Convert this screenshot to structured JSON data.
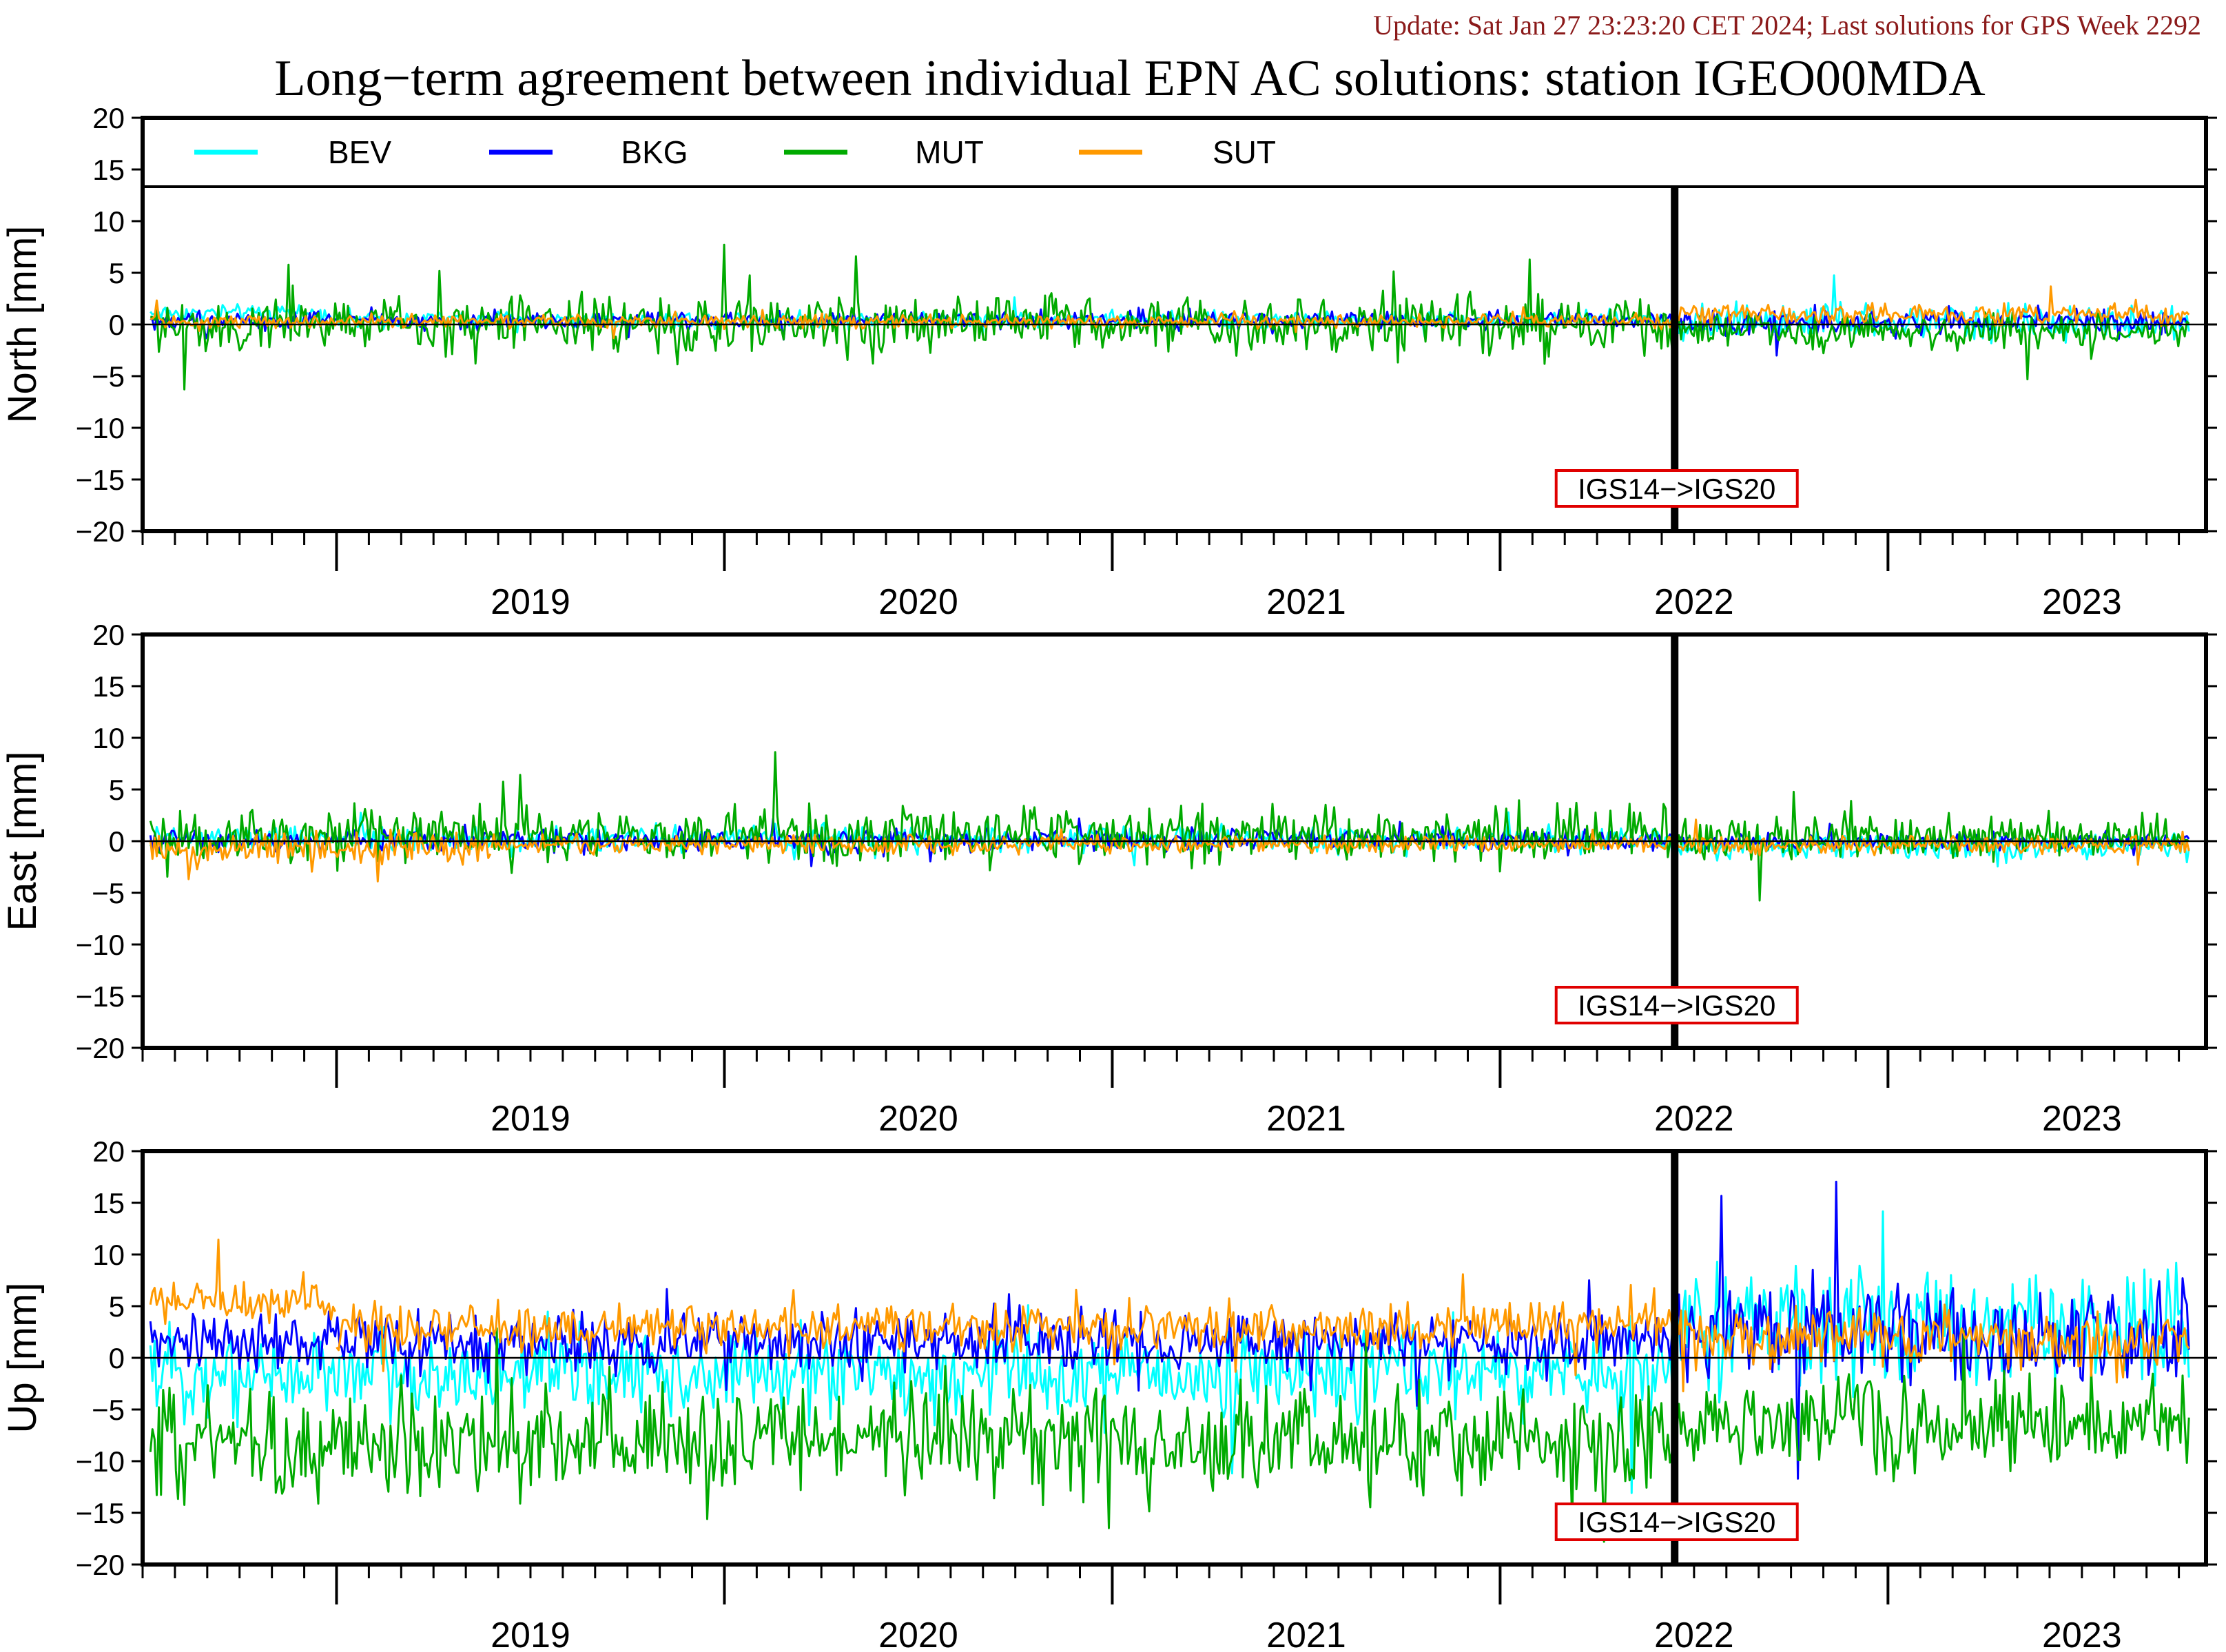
{
  "header": {
    "update_line": "Update: Sat Jan 27 23:23:20 CET 2024; Last solutions for GPS Week 2292",
    "title": "Long−term agreement between individual EPN AC solutions: station IGEO00MDA"
  },
  "colors": {
    "BEV": "#00ffff",
    "BKG": "#0000ff",
    "MUT": "#00aa00",
    "SUT": "#ff9900",
    "update_text": "#8b1a1a",
    "marker_box": "#e00000"
  },
  "legend": [
    {
      "name": "BEV"
    },
    {
      "name": "BKG"
    },
    {
      "name": "MUT"
    },
    {
      "name": "SUT"
    }
  ],
  "chart_data": [
    {
      "type": "line",
      "ylabel": "North [mm]",
      "ylim": [
        -20,
        20
      ],
      "yticks": [
        20,
        15,
        10,
        5,
        0,
        -5,
        -10,
        -15,
        -20
      ],
      "xlim": [
        2018.5,
        2023.82
      ],
      "x_tick_labels": [
        "2019",
        "2020",
        "2021",
        "2022",
        "2023"
      ],
      "reference_line": 0,
      "marker": {
        "x": 2022.45,
        "label": "IGS14−>IGS20"
      },
      "has_legend": true,
      "series": [
        {
          "name": "BEV",
          "segments": [
            {
              "x0": 2018.52,
              "x1": 2019.0,
              "mean": 1.1,
              "noise": 0.4
            },
            {
              "x0": 2019.0,
              "x1": 2022.45,
              "mean": 0.5,
              "noise": 0.4
            },
            {
              "x0": 2022.45,
              "x1": 2023.78,
              "mean": 0.3,
              "noise": 0.8
            }
          ]
        },
        {
          "name": "BKG",
          "segments": [
            {
              "x0": 2018.52,
              "x1": 2022.45,
              "mean": 0.4,
              "noise": 0.4
            },
            {
              "x0": 2022.45,
              "x1": 2023.78,
              "mean": 0.2,
              "noise": 0.6
            }
          ]
        },
        {
          "name": "MUT",
          "segments": [
            {
              "x0": 2018.52,
              "x1": 2022.45,
              "mean": 0.0,
              "noise": 1.4
            },
            {
              "x0": 2022.45,
              "x1": 2023.78,
              "mean": -0.6,
              "noise": 0.8
            }
          ]
        },
        {
          "name": "SUT",
          "segments": [
            {
              "x0": 2018.52,
              "x1": 2022.45,
              "mean": 0.3,
              "noise": 0.3
            },
            {
              "x0": 2022.45,
              "x1": 2023.78,
              "mean": 1.0,
              "noise": 0.5
            }
          ]
        }
      ]
    },
    {
      "type": "line",
      "ylabel": "East [mm]",
      "ylim": [
        -20,
        20
      ],
      "yticks": [
        20,
        15,
        10,
        5,
        0,
        -5,
        -10,
        -15,
        -20
      ],
      "xlim": [
        2018.5,
        2023.82
      ],
      "x_tick_labels": [
        "2019",
        "2020",
        "2021",
        "2022",
        "2023"
      ],
      "reference_line": 0,
      "marker": {
        "x": 2022.45,
        "label": "IGS14−>IGS20"
      },
      "has_legend": false,
      "series": [
        {
          "name": "BEV",
          "segments": [
            {
              "x0": 2018.52,
              "x1": 2022.45,
              "mean": 0.2,
              "noise": 0.6
            },
            {
              "x0": 2022.45,
              "x1": 2023.78,
              "mean": -0.4,
              "noise": 0.6
            }
          ]
        },
        {
          "name": "BKG",
          "segments": [
            {
              "x0": 2018.52,
              "x1": 2022.45,
              "mean": 0.1,
              "noise": 0.5
            },
            {
              "x0": 2022.45,
              "x1": 2023.78,
              "mean": 0.0,
              "noise": 0.4
            }
          ]
        },
        {
          "name": "MUT",
          "segments": [
            {
              "x0": 2018.52,
              "x1": 2022.45,
              "mean": 0.6,
              "noise": 1.3
            },
            {
              "x0": 2022.45,
              "x1": 2023.78,
              "mean": 0.4,
              "noise": 1.0
            }
          ]
        },
        {
          "name": "SUT",
          "segments": [
            {
              "x0": 2018.52,
              "x1": 2019.4,
              "mean": -0.8,
              "noise": 0.8
            },
            {
              "x0": 2019.4,
              "x1": 2022.45,
              "mean": -0.3,
              "noise": 0.4
            },
            {
              "x0": 2022.45,
              "x1": 2023.78,
              "mean": -0.4,
              "noise": 0.4
            }
          ]
        }
      ]
    },
    {
      "type": "line",
      "ylabel": "Up [mm]",
      "ylim": [
        -20,
        20
      ],
      "yticks": [
        20,
        15,
        10,
        5,
        0,
        -5,
        -10,
        -15,
        -20
      ],
      "xlim": [
        2018.5,
        2023.82
      ],
      "x_tick_labels": [
        "2019",
        "2020",
        "2021",
        "2022",
        "2023"
      ],
      "reference_line": 0,
      "marker": {
        "x": 2022.45,
        "label": "IGS14−>IGS20"
      },
      "has_legend": false,
      "series": [
        {
          "name": "BEV",
          "segments": [
            {
              "x0": 2018.52,
              "x1": 2022.45,
              "mean": -1.5,
              "noise": 2.0
            },
            {
              "x0": 2022.45,
              "x1": 2023.78,
              "mean": 3.0,
              "noise": 2.8
            }
          ]
        },
        {
          "name": "BKG",
          "segments": [
            {
              "x0": 2018.52,
              "x1": 2022.45,
              "mean": 1.5,
              "noise": 1.4
            },
            {
              "x0": 2022.45,
              "x1": 2023.78,
              "mean": 2.5,
              "noise": 2.4
            }
          ]
        },
        {
          "name": "MUT",
          "segments": [
            {
              "x0": 2018.52,
              "x1": 2022.45,
              "mean": -8.0,
              "noise": 2.5
            },
            {
              "x0": 2022.45,
              "x1": 2023.78,
              "mean": -6.5,
              "noise": 2.2
            }
          ]
        },
        {
          "name": "SUT",
          "segments": [
            {
              "x0": 2018.52,
              "x1": 2019.0,
              "mean": 5.5,
              "noise": 1.0
            },
            {
              "x0": 2019.0,
              "x1": 2022.45,
              "mean": 3.0,
              "noise": 1.1
            },
            {
              "x0": 2022.45,
              "x1": 2023.78,
              "mean": 1.8,
              "noise": 1.4
            }
          ]
        }
      ]
    }
  ]
}
